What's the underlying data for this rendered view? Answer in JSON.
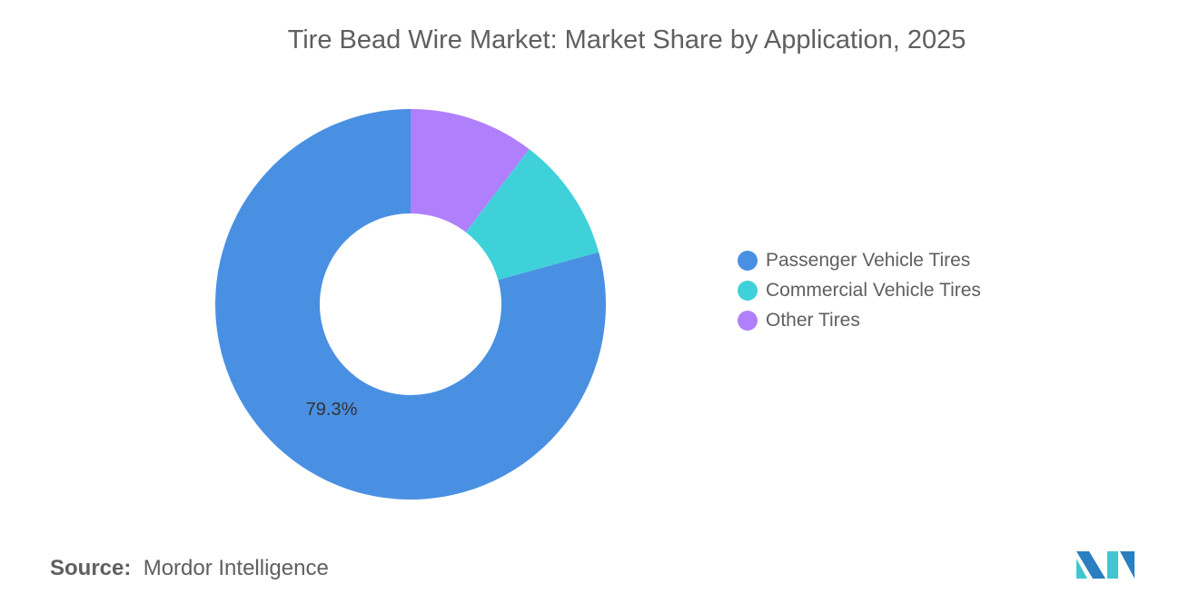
{
  "chart_data": {
    "type": "pie",
    "variant": "donut",
    "title": "Tire Bead Wire Market: Market Share by Application, 2025",
    "categories": [
      "Passenger Vehicle Tires",
      "Commercial Vehicle Tires",
      "Other Tires"
    ],
    "values": [
      79.3,
      10.3,
      10.4
    ],
    "colors": [
      "#4a90e2",
      "#3fd1d9",
      "#b07ffc"
    ],
    "data_labels": {
      "Passenger Vehicle Tires": "79.3%"
    },
    "legend_position": "right"
  },
  "source": {
    "label": "Source:",
    "value": "Mordor Intelligence"
  },
  "logo": {
    "name": "mordor-intelligence-logo",
    "colors": [
      "#2a7fc0",
      "#3fc6cf"
    ]
  }
}
